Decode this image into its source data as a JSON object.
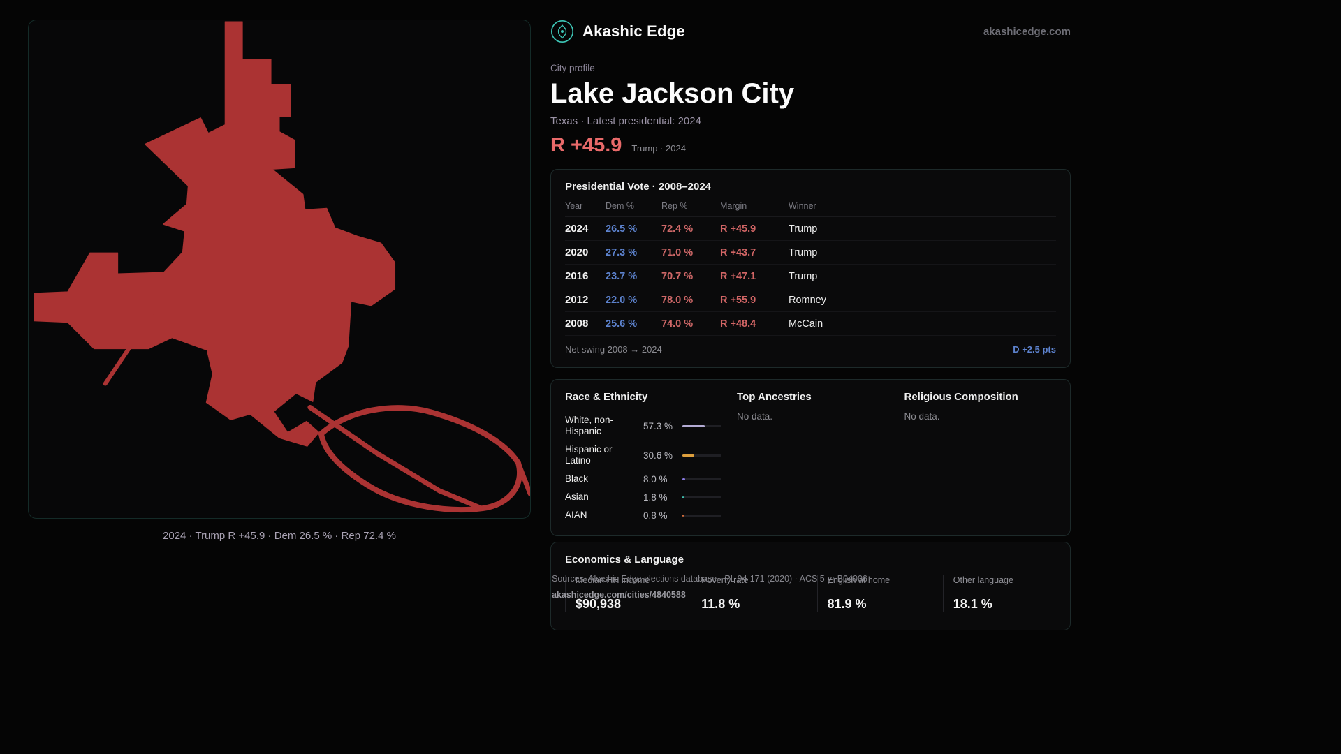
{
  "header": {
    "brand": "Akashic Edge",
    "domain": "akashicedge.com"
  },
  "profile": {
    "eyebrow": "City profile",
    "title": "Lake Jackson City",
    "subtitle": "Texas · Latest presidential: 2024",
    "headline_margin": "R +45.9",
    "headline_note": "Trump · 2024"
  },
  "map": {
    "caption": "2024 · Trump R +45.9 · Dem 26.5 % · Rep 72.4 %",
    "fill_color": "#ab3333"
  },
  "vote_table": {
    "title": "Presidential Vote · 2008–2024",
    "columns": [
      "Year",
      "Dem %",
      "Rep %",
      "Margin",
      "Winner"
    ],
    "rows": [
      {
        "year": "2024",
        "dem": "26.5 %",
        "rep": "72.4 %",
        "margin": "R +45.9",
        "winner": "Trump"
      },
      {
        "year": "2020",
        "dem": "27.3 %",
        "rep": "71.0 %",
        "margin": "R +43.7",
        "winner": "Trump"
      },
      {
        "year": "2016",
        "dem": "23.7 %",
        "rep": "70.7 %",
        "margin": "R +47.1",
        "winner": "Trump"
      },
      {
        "year": "2012",
        "dem": "22.0 %",
        "rep": "78.0 %",
        "margin": "R +55.9",
        "winner": "Romney"
      },
      {
        "year": "2008",
        "dem": "25.6 %",
        "rep": "74.0 %",
        "margin": "R +48.4",
        "winner": "McCain"
      }
    ],
    "footer_label": "Net swing 2008 → 2024",
    "footer_value": "D +2.5 pts"
  },
  "demographics": {
    "race_title": "Race & Ethnicity",
    "race_rows": [
      {
        "label": "White, non-Hispanic",
        "value": "57.3 %",
        "pct": 57.3,
        "color": "#b3abd4"
      },
      {
        "label": "Hispanic or Latino",
        "value": "30.6 %",
        "pct": 30.6,
        "color": "#dd9f3d"
      },
      {
        "label": "Black",
        "value": "8.0 %",
        "pct": 8.0,
        "color": "#8879e0"
      },
      {
        "label": "Asian",
        "value": "1.8 %",
        "pct": 1.8,
        "color": "#3fbfae"
      },
      {
        "label": "AIAN",
        "value": "0.8 %",
        "pct": 0.8,
        "color": "#cf6a3a"
      }
    ],
    "ancestries_title": "Top Ancestries",
    "ancestries_empty": "No data.",
    "religion_title": "Religious Composition",
    "religion_empty": "No data."
  },
  "economics": {
    "title": "Economics & Language",
    "stats": [
      {
        "label": "Median HH income",
        "value": "$90,938"
      },
      {
        "label": "Poverty rate",
        "value": "11.8 %"
      },
      {
        "label": "English at home",
        "value": "81.9 %"
      },
      {
        "label": "Other language",
        "value": "18.1 %"
      }
    ]
  },
  "footer": {
    "sources": "Sources: Akashic Edge elections database · PL 94-171 (2020) · ACS 5-yr B04006",
    "permalink": "akashicedge.com/cities/4840588"
  },
  "colors": {
    "accent_red": "#e96a6a",
    "dem_blue": "#5d83cf",
    "rep_red": "#cf6868",
    "teal": "#3ec8b8",
    "map_fill": "#ab3333"
  }
}
